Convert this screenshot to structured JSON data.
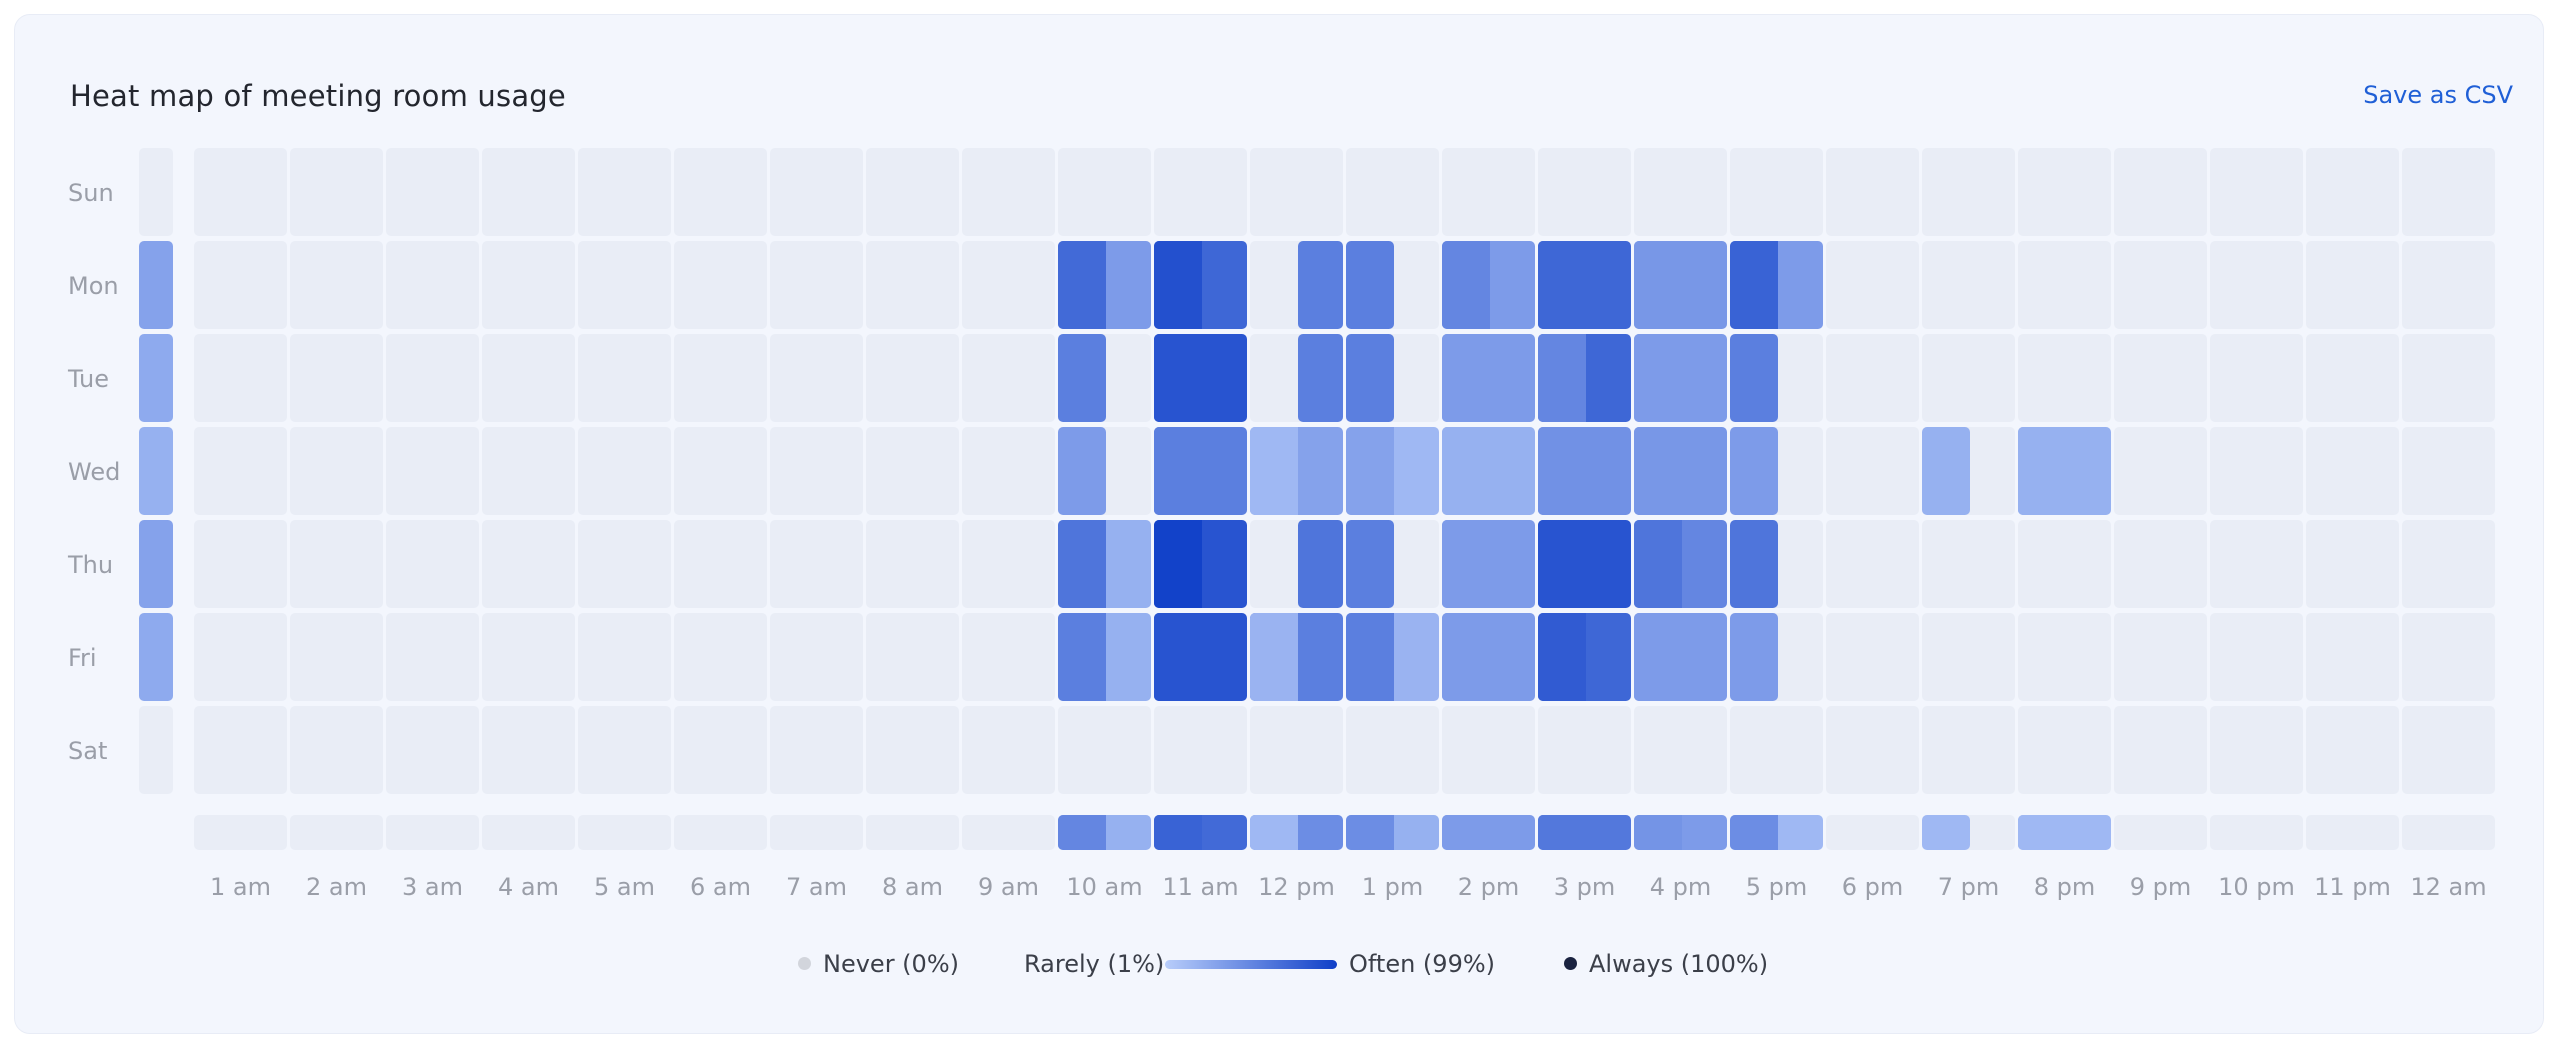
{
  "header": {
    "title": "Heat map of meeting room usage",
    "save_label": "Save as CSV"
  },
  "legend": {
    "never_label": "Never (0%)",
    "rarely_label": "Rarely (1%)",
    "often_label": "Often (99%)",
    "always_label": "Always (100%)"
  },
  "colors": {
    "card_bg": "#f3f6fd",
    "empty_cell": "#e9edf6",
    "scale_low": "#b8cdfa",
    "scale_high": "#0f3fc8",
    "never_dot": "#d2d5dc",
    "always_dot": "#1a2340",
    "accent_link": "#1f5fd6"
  },
  "chart_data": {
    "type": "heatmap",
    "title": "Heat map of meeting room usage",
    "value_unit": "percent of time",
    "days": [
      "Sun",
      "Mon",
      "Tue",
      "Wed",
      "Thu",
      "Fri",
      "Sat"
    ],
    "hours": [
      "1 am",
      "2 am",
      "3 am",
      "4 am",
      "5 am",
      "6 am",
      "7 am",
      "8 am",
      "9 am",
      "10 am",
      "11 am",
      "12 pm",
      "1 pm",
      "2 pm",
      "3 pm",
      "4 pm",
      "5 pm",
      "6 pm",
      "7 pm",
      "8 pm",
      "9 pm",
      "10 pm",
      "11 pm",
      "12 am"
    ],
    "resolution": "half-hour",
    "values": [
      [
        0,
        0,
        0,
        0,
        0,
        0,
        0,
        0,
        0,
        0,
        0,
        0,
        0,
        0,
        0,
        0,
        0,
        0,
        0,
        0,
        0,
        0,
        0,
        0,
        0,
        0,
        0,
        0,
        0,
        0,
        0,
        0,
        0,
        0,
        0,
        0,
        0,
        0,
        0,
        0,
        0,
        0,
        0,
        0,
        0,
        0,
        0,
        0
      ],
      [
        0,
        0,
        0,
        0,
        0,
        0,
        0,
        0,
        0,
        0,
        0,
        0,
        0,
        0,
        0,
        0,
        0,
        0,
        70,
        35,
        88,
        72,
        0,
        55,
        55,
        0,
        50,
        35,
        72,
        72,
        38,
        38,
        75,
        35,
        0,
        0,
        0,
        0,
        0,
        0,
        0,
        0,
        0,
        0,
        0,
        0,
        0,
        0
      ],
      [
        0,
        0,
        0,
        0,
        0,
        0,
        0,
        0,
        0,
        0,
        0,
        0,
        0,
        0,
        0,
        0,
        0,
        0,
        55,
        0,
        85,
        85,
        0,
        55,
        55,
        0,
        35,
        35,
        50,
        72,
        35,
        35,
        55,
        0,
        0,
        0,
        0,
        0,
        0,
        0,
        0,
        0,
        0,
        0,
        0,
        0,
        0,
        0
      ],
      [
        0,
        0,
        0,
        0,
        0,
        0,
        0,
        0,
        0,
        0,
        0,
        0,
        0,
        0,
        0,
        0,
        0,
        0,
        35,
        0,
        55,
        55,
        15,
        30,
        30,
        15,
        20,
        20,
        42,
        42,
        38,
        38,
        35,
        0,
        0,
        0,
        20,
        0,
        20,
        20,
        0,
        0,
        0,
        0,
        0,
        0,
        0,
        0
      ],
      [
        0,
        0,
        0,
        0,
        0,
        0,
        0,
        0,
        0,
        0,
        0,
        0,
        0,
        0,
        0,
        0,
        0,
        0,
        62,
        20,
        98,
        85,
        0,
        62,
        55,
        0,
        35,
        35,
        85,
        85,
        62,
        50,
        62,
        0,
        0,
        0,
        0,
        0,
        0,
        0,
        0,
        0,
        0,
        0,
        0,
        0,
        0,
        0
      ],
      [
        0,
        0,
        0,
        0,
        0,
        0,
        0,
        0,
        0,
        0,
        0,
        0,
        0,
        0,
        0,
        0,
        0,
        0,
        55,
        20,
        85,
        85,
        18,
        55,
        55,
        18,
        35,
        35,
        80,
        72,
        35,
        35,
        35,
        0,
        0,
        0,
        0,
        0,
        0,
        0,
        0,
        0,
        0,
        0,
        0,
        0,
        0,
        0
      ],
      [
        0,
        0,
        0,
        0,
        0,
        0,
        0,
        0,
        0,
        0,
        0,
        0,
        0,
        0,
        0,
        0,
        0,
        0,
        0,
        0,
        0,
        0,
        0,
        0,
        0,
        0,
        0,
        0,
        0,
        0,
        0,
        0,
        0,
        0,
        0,
        0,
        0,
        0,
        0,
        0,
        0,
        0,
        0,
        0,
        0,
        0,
        0,
        0
      ]
    ],
    "day_totals": [
      0,
      30,
      25,
      20,
      30,
      25,
      0
    ],
    "hour_totals": [
      0,
      0,
      0,
      0,
      0,
      0,
      0,
      0,
      0,
      0,
      0,
      0,
      0,
      0,
      0,
      0,
      0,
      0,
      50,
      20,
      75,
      70,
      15,
      45,
      45,
      20,
      35,
      35,
      60,
      60,
      40,
      35,
      45,
      15,
      0,
      0,
      15,
      0,
      15,
      15,
      0,
      0,
      0,
      0,
      0,
      0,
      0,
      0
    ]
  }
}
